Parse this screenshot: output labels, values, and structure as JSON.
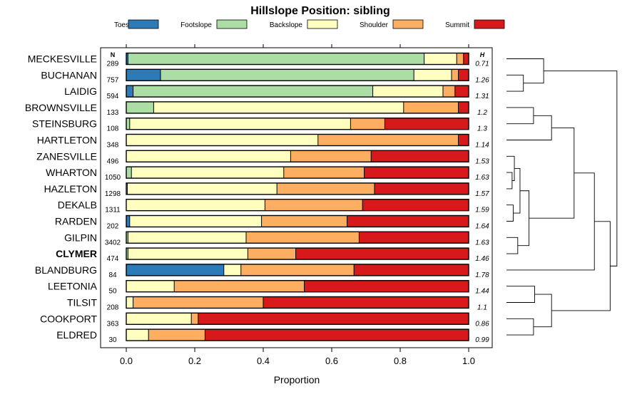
{
  "chart_data": {
    "type": "bar",
    "orientation": "horizontal",
    "stacked": true,
    "title": "Hillslope Position: sibling",
    "xlabel": "Proportion",
    "ylabel": "",
    "xlim": [
      0,
      1
    ],
    "xticks": [
      "0.0",
      "0.2",
      "0.4",
      "0.6",
      "0.8",
      "1.0"
    ],
    "xtick_values": [
      0,
      0.2,
      0.4,
      0.6,
      0.8,
      1.0
    ],
    "n_header": "N",
    "h_header": "H",
    "legend_position": "top",
    "series": [
      {
        "name": "Toeslope",
        "color": "#2c7bb6"
      },
      {
        "name": "Footslope",
        "color": "#abdda4"
      },
      {
        "name": "Backslope",
        "color": "#ffffbf"
      },
      {
        "name": "Shoulder",
        "color": "#fdae61"
      },
      {
        "name": "Summit",
        "color": "#d7191c"
      }
    ],
    "categories": [
      {
        "name": "MECKESVILLE",
        "n": "289",
        "h": "0.71",
        "values": [
          0.005,
          0.865,
          0.095,
          0.02,
          0.015
        ],
        "bold": false
      },
      {
        "name": "BUCHANAN",
        "n": "757",
        "h": "1.26",
        "values": [
          0.1,
          0.74,
          0.11,
          0.02,
          0.03
        ],
        "bold": false
      },
      {
        "name": "LAIDIG",
        "n": "594",
        "h": "1.31",
        "values": [
          0.02,
          0.7,
          0.205,
          0.035,
          0.04
        ],
        "bold": false
      },
      {
        "name": "BROWNSVILLE",
        "n": "133",
        "h": "1.2",
        "values": [
          0.0,
          0.08,
          0.73,
          0.16,
          0.03
        ],
        "bold": false
      },
      {
        "name": "STEINSBURG",
        "n": "108",
        "h": "1.3",
        "values": [
          0.0,
          0.01,
          0.645,
          0.1,
          0.245
        ],
        "bold": false
      },
      {
        "name": "HARTLETON",
        "n": "348",
        "h": "1.14",
        "values": [
          0.0,
          0.0,
          0.56,
          0.41,
          0.03
        ],
        "bold": false
      },
      {
        "name": "ZANESVILLE",
        "n": "496",
        "h": "1.53",
        "values": [
          0.0,
          0.0,
          0.48,
          0.235,
          0.285
        ],
        "bold": false
      },
      {
        "name": "WHARTON",
        "n": "1050",
        "h": "1.63",
        "values": [
          0.0,
          0.015,
          0.445,
          0.235,
          0.305
        ],
        "bold": false
      },
      {
        "name": "HAZLETON",
        "n": "1298",
        "h": "1.57",
        "values": [
          0.0,
          0.003,
          0.437,
          0.285,
          0.275
        ],
        "bold": false
      },
      {
        "name": "DEKALB",
        "n": "1311",
        "h": "1.59",
        "values": [
          0.0,
          0.0,
          0.405,
          0.285,
          0.31
        ],
        "bold": false
      },
      {
        "name": "RARDEN",
        "n": "202",
        "h": "1.64",
        "values": [
          0.01,
          0.0,
          0.385,
          0.25,
          0.355
        ],
        "bold": false
      },
      {
        "name": "GILPIN",
        "n": "3402",
        "h": "1.63",
        "values": [
          0.0,
          0.005,
          0.345,
          0.33,
          0.32
        ],
        "bold": false
      },
      {
        "name": "CLYMER",
        "n": "474",
        "h": "1.46",
        "values": [
          0.0,
          0.005,
          0.35,
          0.14,
          0.505
        ],
        "bold": true
      },
      {
        "name": "BLANDBURG",
        "n": "84",
        "h": "1.78",
        "values": [
          0.285,
          0.0,
          0.05,
          0.33,
          0.335
        ],
        "bold": false
      },
      {
        "name": "LEETONIA",
        "n": "50",
        "h": "1.44",
        "values": [
          0.0,
          0.0,
          0.14,
          0.38,
          0.48
        ],
        "bold": false
      },
      {
        "name": "TILSIT",
        "n": "208",
        "h": "1.1",
        "values": [
          0.0,
          0.0,
          0.02,
          0.38,
          0.6
        ],
        "bold": false
      },
      {
        "name": "COOKPORT",
        "n": "363",
        "h": "0.86",
        "values": [
          0.0,
          0.0,
          0.19,
          0.02,
          0.79
        ],
        "bold": false
      },
      {
        "name": "ELDRED",
        "n": "30",
        "h": "0.99",
        "values": [
          0.0,
          0.0,
          0.065,
          0.165,
          0.77
        ],
        "bold": false
      }
    ],
    "dendrogram": {
      "leaves": [
        "MECKESVILLE",
        "BUCHANAN",
        "LAIDIG",
        "BROWNSVILLE",
        "STEINSBURG",
        "HARTLETON",
        "ZANESVILLE",
        "WHARTON",
        "HAZLETON",
        "DEKALB",
        "RARDEN",
        "GILPIN",
        "CLYMER",
        "BLANDBURG",
        "LEETONIA",
        "TILSIT",
        "COOKPORT",
        "ELDRED"
      ],
      "merges": [
        [
          1,
          2,
          0.15
        ],
        [
          0,
          "m0",
          0.33
        ],
        [
          7,
          8,
          0.05
        ],
        [
          9,
          10,
          0.06
        ],
        [
          6,
          "m2",
          0.07
        ],
        [
          11,
          12,
          0.1
        ],
        [
          "m4",
          "m3",
          0.12
        ],
        [
          "m6",
          "m5",
          0.2
        ],
        [
          3,
          4,
          0.24
        ],
        [
          "m8",
          5,
          0.4
        ],
        [
          "m9",
          "m7",
          0.6
        ],
        [
          13,
          "m10",
          0.78
        ],
        [
          16,
          17,
          0.24
        ],
        [
          14,
          15,
          0.25
        ],
        [
          "m13",
          "m12",
          0.4
        ],
        [
          "m11",
          "m14",
          0.92
        ],
        [
          "m1",
          "m15",
          0.98
        ]
      ],
      "max_height": 1.0
    }
  }
}
